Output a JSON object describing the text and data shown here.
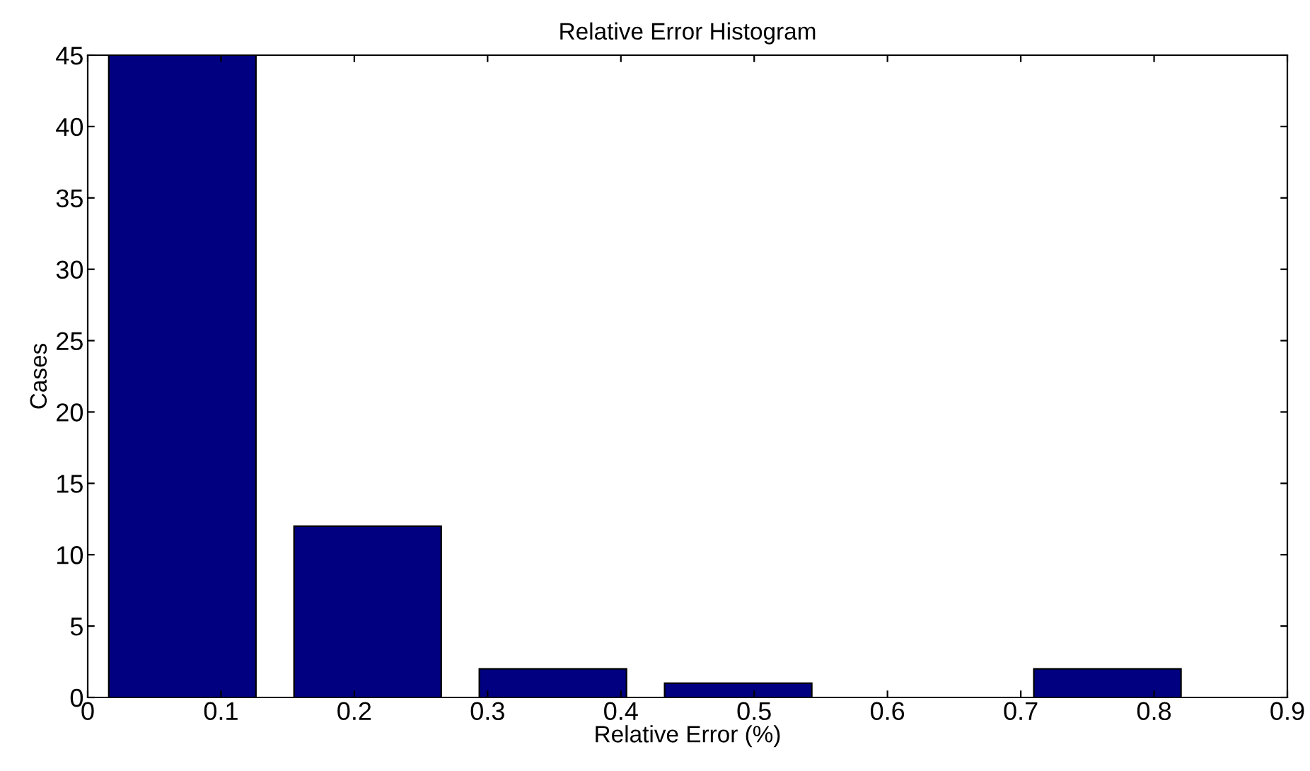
{
  "chart_data": {
    "type": "bar",
    "title": "Relative Error Histogram",
    "xlabel": "Relative Error (%)",
    "ylabel": "Cases",
    "x": [
      0.071,
      0.21,
      0.349,
      0.488,
      0.626,
      0.765
    ],
    "series": [
      {
        "color": "#000080",
        "values": [
          45,
          12,
          2,
          1,
          null,
          2
        ]
      }
    ],
    "xlim": [
      0,
      0.9
    ],
    "xticks": [
      0,
      0.1,
      0.2,
      0.3,
      0.4,
      0.5,
      0.6,
      0.7,
      0.8,
      0.9
    ],
    "ylim": [
      0,
      45
    ],
    "yticks": [
      0,
      5,
      10,
      15,
      20,
      25,
      30,
      35,
      40,
      45
    ],
    "grid": false
  }
}
